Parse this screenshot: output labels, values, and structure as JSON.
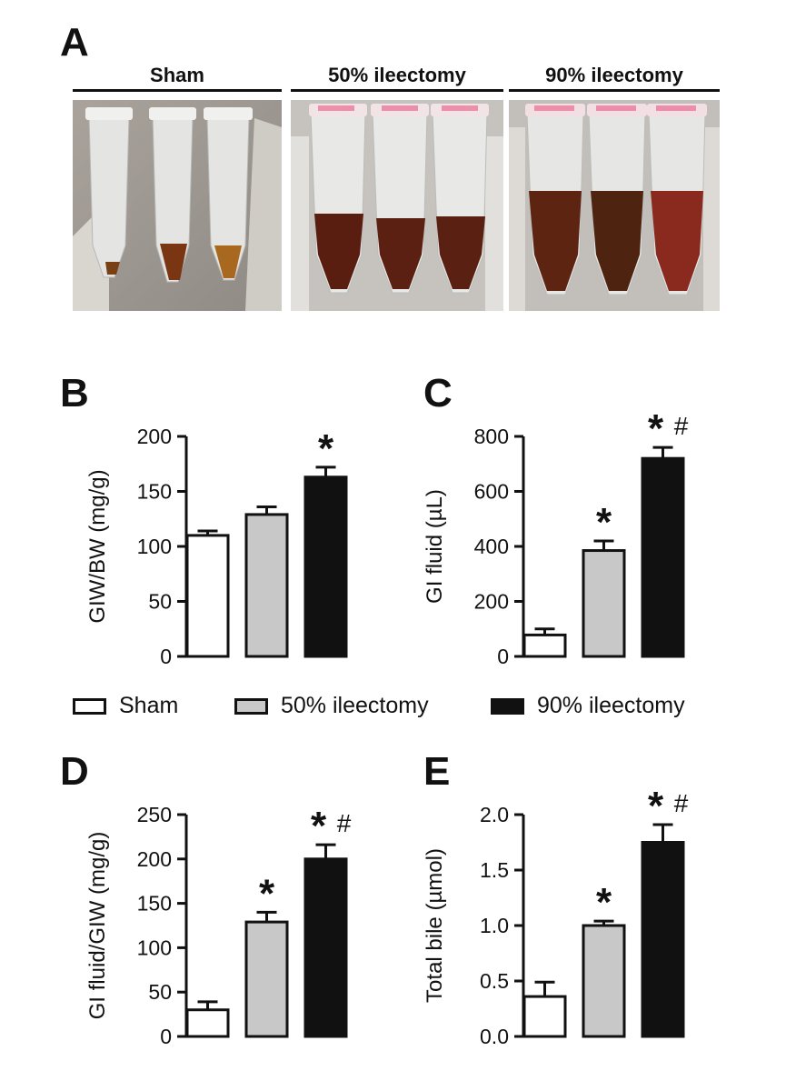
{
  "panel_letters": [
    "A",
    "B",
    "C",
    "D",
    "E"
  ],
  "photo_groups": [
    "Sham",
    "50% ileectomy",
    "90% ileectomy"
  ],
  "legend": {
    "items": [
      {
        "label": "Sham",
        "color": "#ffffff"
      },
      {
        "label": "50% ileectomy",
        "color": "#c8c8c8"
      },
      {
        "label": "90% ileectomy",
        "color": "#111111"
      }
    ]
  },
  "chart_data": [
    {
      "type": "bar",
      "panel": "B",
      "categories": [
        "Sham",
        "50% ileectomy",
        "90% ileectomy"
      ],
      "values": [
        110,
        129,
        163
      ],
      "errors": [
        4,
        7,
        9
      ],
      "annotations": [
        "",
        "",
        "*"
      ],
      "ylabel": "GIW/BW (mg/g)",
      "ylim": [
        0,
        200
      ],
      "yticks": [
        "0",
        "50",
        "100",
        "150",
        "200"
      ],
      "ytick_values": [
        0,
        50,
        100,
        150,
        200
      ]
    },
    {
      "type": "bar",
      "panel": "C",
      "categories": [
        "Sham",
        "50% ileectomy",
        "90% ileectomy"
      ],
      "values": [
        78,
        385,
        720
      ],
      "errors": [
        22,
        35,
        40
      ],
      "annotations": [
        "",
        "*",
        "*#"
      ],
      "ylabel": "GI fluid (µL)",
      "ylim": [
        0,
        800
      ],
      "yticks": [
        "0",
        "200",
        "400",
        "600",
        "800"
      ],
      "ytick_values": [
        0,
        200,
        400,
        600,
        800
      ]
    },
    {
      "type": "bar",
      "panel": "D",
      "categories": [
        "Sham",
        "50% ileectomy",
        "90% ileectomy"
      ],
      "values": [
        30,
        129,
        200
      ],
      "errors": [
        9,
        11,
        16
      ],
      "annotations": [
        "",
        "*",
        "*#"
      ],
      "ylabel": "GI fluid/GIW (mg/g)",
      "ylim": [
        0,
        250
      ],
      "yticks": [
        "0",
        "50",
        "100",
        "150",
        "200",
        "250"
      ],
      "ytick_values": [
        0,
        50,
        100,
        150,
        200,
        250
      ]
    },
    {
      "type": "bar",
      "panel": "E",
      "categories": [
        "Sham",
        "50% ileectomy",
        "90% ileectomy"
      ],
      "values": [
        0.36,
        1.0,
        1.75
      ],
      "errors": [
        0.13,
        0.04,
        0.16
      ],
      "annotations": [
        "",
        "*",
        "*#"
      ],
      "ylabel": "Total bile (µmol)",
      "ylim": [
        0,
        2.0
      ],
      "yticks": [
        "0.0",
        "0.5",
        "1.0",
        "1.5",
        "2.0"
      ],
      "ytick_values": [
        0,
        0.5,
        1.0,
        1.5,
        2.0
      ]
    }
  ]
}
